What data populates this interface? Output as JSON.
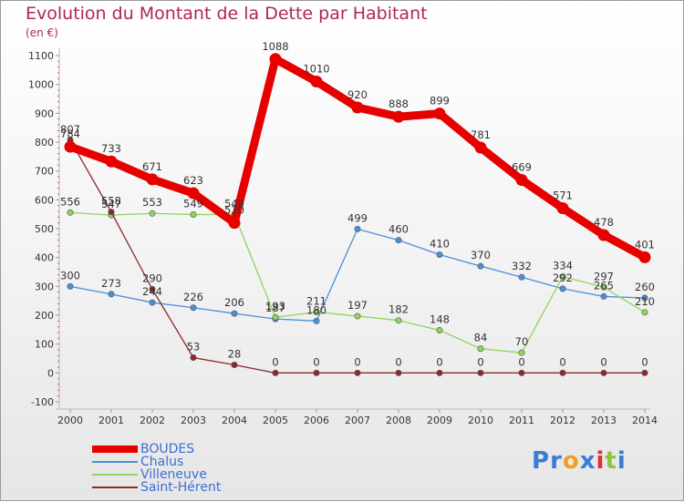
{
  "title": "Evolution du Montant de la Dette par Habitant",
  "subtitle": "(en €)",
  "logo": {
    "text": "Proxiti",
    "letters": [
      {
        "ch": "P",
        "color": "#3a7bd5"
      },
      {
        "ch": "r",
        "color": "#3a7bd5"
      },
      {
        "ch": "o",
        "color": "#f0a020"
      },
      {
        "ch": "x",
        "color": "#3a7bd5"
      },
      {
        "ch": "i",
        "color": "#e03030"
      },
      {
        "ch": "t",
        "color": "#8cc63f"
      },
      {
        "ch": "i",
        "color": "#3a7bd5"
      }
    ]
  },
  "chart_data": {
    "type": "line",
    "x": [
      "2000",
      "2001",
      "2002",
      "2003",
      "2004",
      "2005",
      "2006",
      "2007",
      "2008",
      "2009",
      "2010",
      "2011",
      "2012",
      "2013",
      "2014"
    ],
    "ylim": [
      -100,
      1100
    ],
    "yticks": [
      -100,
      0,
      100,
      200,
      300,
      400,
      500,
      600,
      700,
      800,
      900,
      1000,
      1100
    ],
    "grid": false,
    "legend": "bottom-left",
    "series": [
      {
        "name": "BOUDES",
        "color": "#e60000",
        "emphasis": true,
        "values": [
          784,
          733,
          671,
          623,
          520,
          1088,
          1010,
          920,
          888,
          899,
          781,
          669,
          571,
          478,
          401
        ],
        "labels": [
          "784",
          "733",
          "671",
          "623",
          "520",
          "1088",
          "1010",
          "920",
          "888",
          "899",
          "781",
          "669",
          "571",
          "478",
          "401"
        ]
      },
      {
        "name": "Chalus",
        "color": "#4a90d9",
        "values": [
          300,
          273,
          244,
          226,
          206,
          187,
          180,
          499,
          460,
          410,
          370,
          332,
          292,
          265,
          260
        ],
        "labels": [
          "300",
          "273",
          "244",
          "226",
          "206",
          "187",
          "180",
          "499",
          "460",
          "410",
          "370",
          "332",
          "292",
          "265",
          "260"
        ]
      },
      {
        "name": "Villeneuve",
        "color": "#8fd45e",
        "values": [
          556,
          547,
          553,
          549,
          549,
          193,
          211,
          197,
          182,
          148,
          84,
          70,
          334,
          297,
          210
        ],
        "labels": [
          "556",
          "547",
          "553",
          "549",
          "549",
          "193",
          "211",
          "197",
          "182",
          "148",
          "84",
          "70",
          "334",
          "297",
          "210"
        ]
      },
      {
        "name": "Saint-Hérent",
        "color": "#8b2a2a",
        "values": [
          807,
          558,
          290,
          53,
          28,
          0,
          0,
          0,
          0,
          0,
          0,
          0,
          0,
          0,
          0
        ],
        "labels": [
          "807",
          "558",
          "290",
          "53",
          "28",
          "0",
          "0",
          "0",
          "0",
          "0",
          "0",
          "0",
          "0",
          "0",
          "0"
        ]
      }
    ]
  }
}
